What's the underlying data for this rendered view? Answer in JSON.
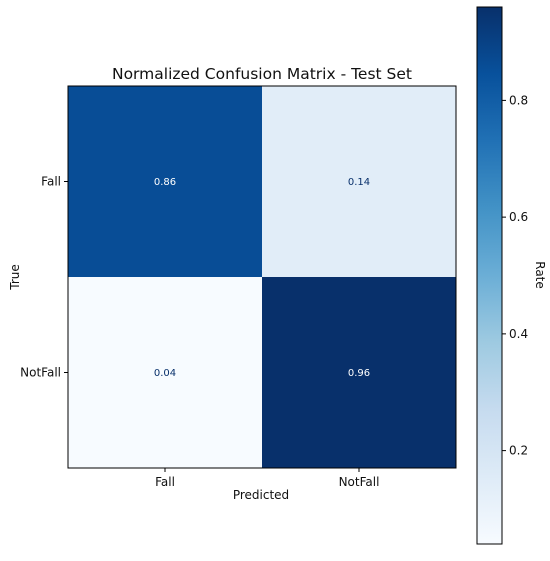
{
  "chart_data": {
    "type": "heatmap",
    "title": "Normalized Confusion Matrix - Test Set",
    "xlabel": "Predicted",
    "ylabel": "True",
    "x_categories": [
      "Fall",
      "NotFall"
    ],
    "y_categories": [
      "Fall",
      "NotFall"
    ],
    "values": [
      [
        0.86,
        0.14
      ],
      [
        0.04,
        0.96
      ]
    ],
    "value_labels": [
      [
        "0.86",
        "0.14"
      ],
      [
        "0.04",
        "0.96"
      ]
    ],
    "colormap": "Blues",
    "colorbar": {
      "label": "Rate",
      "range": [
        0.04,
        0.96
      ],
      "ticks": [
        0.2,
        0.4,
        0.6,
        0.8
      ],
      "tick_labels": [
        "0.2",
        "0.4",
        "0.6",
        "0.8"
      ]
    },
    "grid": false
  }
}
